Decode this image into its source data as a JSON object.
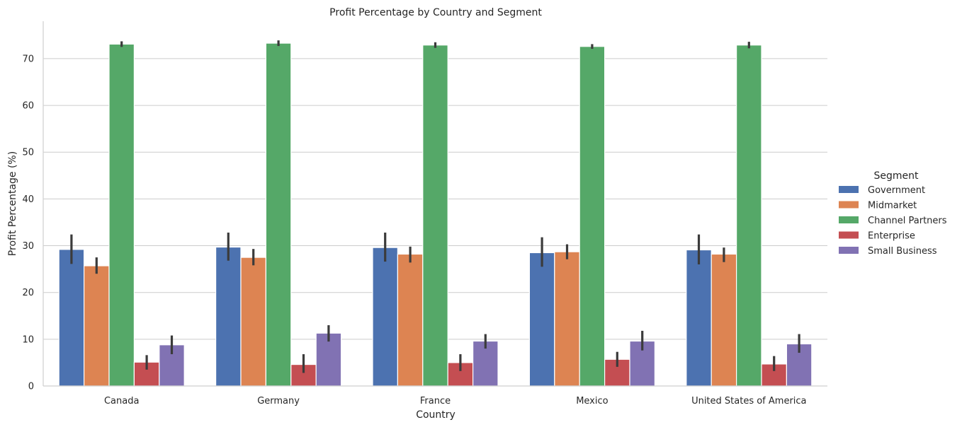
{
  "chart_data": {
    "type": "bar",
    "title": "Profit Percentage by Country and Segment",
    "xlabel": "Country",
    "ylabel": "Profit Percentage (%)",
    "categories": [
      "Canada",
      "Germany",
      "France",
      "Mexico",
      "United States of America"
    ],
    "ylim": [
      0,
      78
    ],
    "yticks": [
      0,
      10,
      20,
      30,
      40,
      50,
      60,
      70
    ],
    "grid": true,
    "legend": {
      "title": "Segment",
      "placement": "right"
    },
    "series": [
      {
        "name": "Government",
        "color": "#4c72b0",
        "values": [
          29.2,
          29.7,
          29.6,
          28.5,
          29.1
        ],
        "error_low": [
          26.1,
          26.8,
          26.6,
          25.5,
          26.0
        ],
        "error_high": [
          32.4,
          32.8,
          32.8,
          31.8,
          32.4
        ]
      },
      {
        "name": "Midmarket",
        "color": "#dd8452",
        "values": [
          25.7,
          27.5,
          28.2,
          28.7,
          28.2
        ],
        "error_low": [
          24.0,
          25.8,
          26.4,
          27.1,
          26.5
        ],
        "error_high": [
          27.5,
          29.3,
          29.8,
          30.3,
          29.6
        ]
      },
      {
        "name": "Channel Partners",
        "color": "#55a868",
        "values": [
          73.1,
          73.3,
          72.9,
          72.6,
          72.9
        ],
        "error_low": [
          72.5,
          72.7,
          72.3,
          72.1,
          72.2
        ],
        "error_high": [
          73.7,
          73.9,
          73.5,
          73.1,
          73.6
        ]
      },
      {
        "name": "Enterprise",
        "color": "#c44e52",
        "values": [
          5.1,
          4.6,
          5.0,
          5.7,
          4.7
        ],
        "error_low": [
          3.5,
          2.8,
          3.2,
          4.1,
          3.2
        ],
        "error_high": [
          6.6,
          6.8,
          6.8,
          7.3,
          6.4
        ]
      },
      {
        "name": "Small Business",
        "color": "#8172b3",
        "values": [
          8.8,
          11.3,
          9.6,
          9.6,
          9.0
        ],
        "error_low": [
          6.8,
          9.5,
          8.0,
          7.6,
          7.1
        ],
        "error_high": [
          10.8,
          13.0,
          11.1,
          11.8,
          11.1
        ]
      }
    ]
  }
}
